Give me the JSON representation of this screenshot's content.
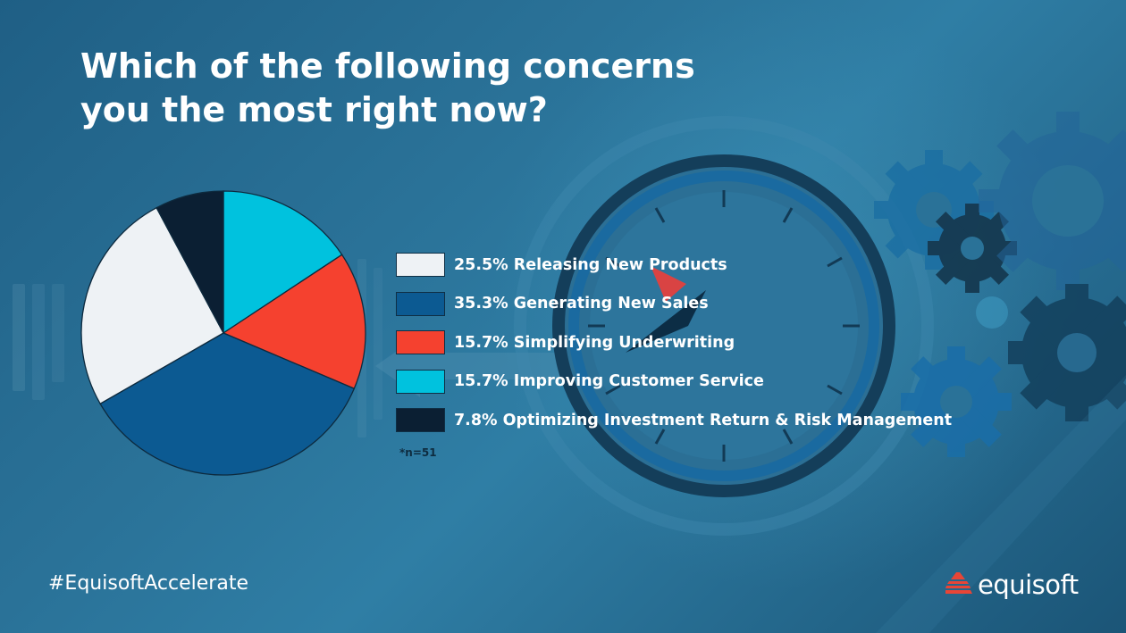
{
  "title": {
    "line1": "Which of the following concerns",
    "line2": "you the most right now?"
  },
  "chart_data": {
    "type": "pie",
    "title": "Which of the following concerns you the most right now?",
    "categories": [
      "Releasing New Products",
      "Generating New Sales",
      "Simplifying Underwriting",
      "Improving Customer Service",
      "Optimizing Investment Return & Risk Management"
    ],
    "values": [
      25.5,
      35.3,
      15.7,
      15.7,
      7.8
    ],
    "colors": [
      "#eef2f5",
      "#0c5a92",
      "#f5412f",
      "#00c2de",
      "#0b1f33"
    ],
    "pie_order": [
      3,
      2,
      1,
      0,
      4
    ],
    "legend": "right"
  },
  "legend_items": [
    {
      "label": "25.5% Releasing New Products"
    },
    {
      "label": "35.3% Generating New Sales"
    },
    {
      "label": "15.7% Simplifying Underwriting"
    },
    {
      "label": "15.7% Improving Customer Service"
    },
    {
      "label": "7.8% Optimizing Investment Return & Risk Management"
    }
  ],
  "note": "*n=51",
  "hashtag": "#EquisoftAccelerate",
  "brand": {
    "name": "equisoft",
    "logo_icon": "equisoft-logo-icon",
    "logo_color": "#e84536"
  },
  "decor": {
    "clock_icon": "clock-icon",
    "gear_icon": "gear-icon"
  }
}
